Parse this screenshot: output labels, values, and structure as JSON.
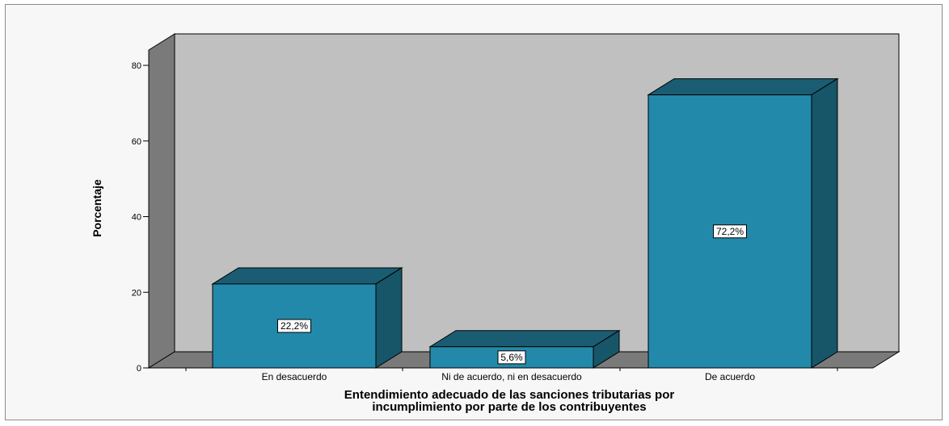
{
  "chart_data": {
    "type": "bar",
    "style": "3d",
    "categories": [
      "En desacuerdo",
      "Ni de acuerdo, ni en desacuerdo",
      "De acuerdo"
    ],
    "values": [
      22.2,
      5.6,
      72.2
    ],
    "data_labels": [
      "22,2%",
      "5,6%",
      "72,2%"
    ],
    "xlabel": [
      "Entendimiento adecuado de las sanciones tributarias por",
      "incumplimiento por parte de los contribuyentes"
    ],
    "ylabel": "Porcentaje",
    "ylim": [
      0,
      80
    ],
    "yticks": [
      "0",
      "20",
      "40",
      "60",
      "80"
    ],
    "grid": false,
    "colors": {
      "bar_front": "#2389aa",
      "bar_top": "#1a5d73",
      "bar_side": "#175569",
      "plot_back": "#c0c0c0",
      "plot_wall": "#7a7a7a",
      "plot_floor": "#7a7a7a"
    }
  }
}
